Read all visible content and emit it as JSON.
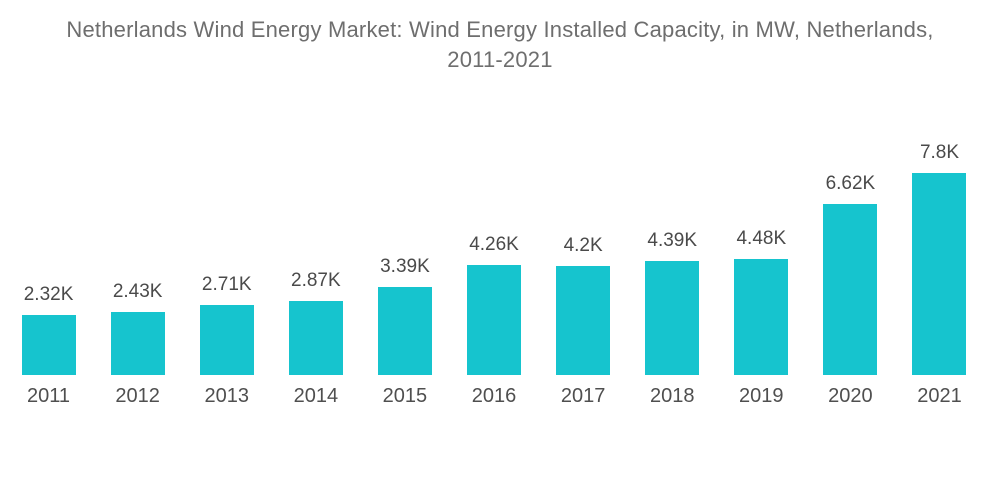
{
  "title": "Netherlands Wind Energy Market: Wind Energy Installed Capacity, in MW, Netherlands, 2011-2021",
  "colors": {
    "bar": "#16C4CE",
    "title_text": "#6e6e6e",
    "label_text": "#4a4a4a",
    "background": "#ffffff"
  },
  "chart_data": {
    "type": "bar",
    "title": "Netherlands Wind Energy Market: Wind Energy Installed Capacity, in MW, Netherlands, 2011-2021",
    "categories": [
      "2011",
      "2012",
      "2013",
      "2014",
      "2015",
      "2016",
      "2017",
      "2018",
      "2019",
      "2020",
      "2021"
    ],
    "values": [
      2320,
      2430,
      2710,
      2870,
      3390,
      4260,
      4200,
      4390,
      4480,
      6620,
      7800
    ],
    "value_labels": [
      "2.32K",
      "2.43K",
      "2.71K",
      "2.87K",
      "3.39K",
      "4.26K",
      "4.2K",
      "4.39K",
      "4.48K",
      "6.62K",
      "7.8K"
    ],
    "xlabel": "",
    "ylabel": "",
    "unit": "MW",
    "ylim": [
      0,
      7800
    ],
    "grid": false,
    "legend": false,
    "bar_color": "#16C4CE"
  }
}
